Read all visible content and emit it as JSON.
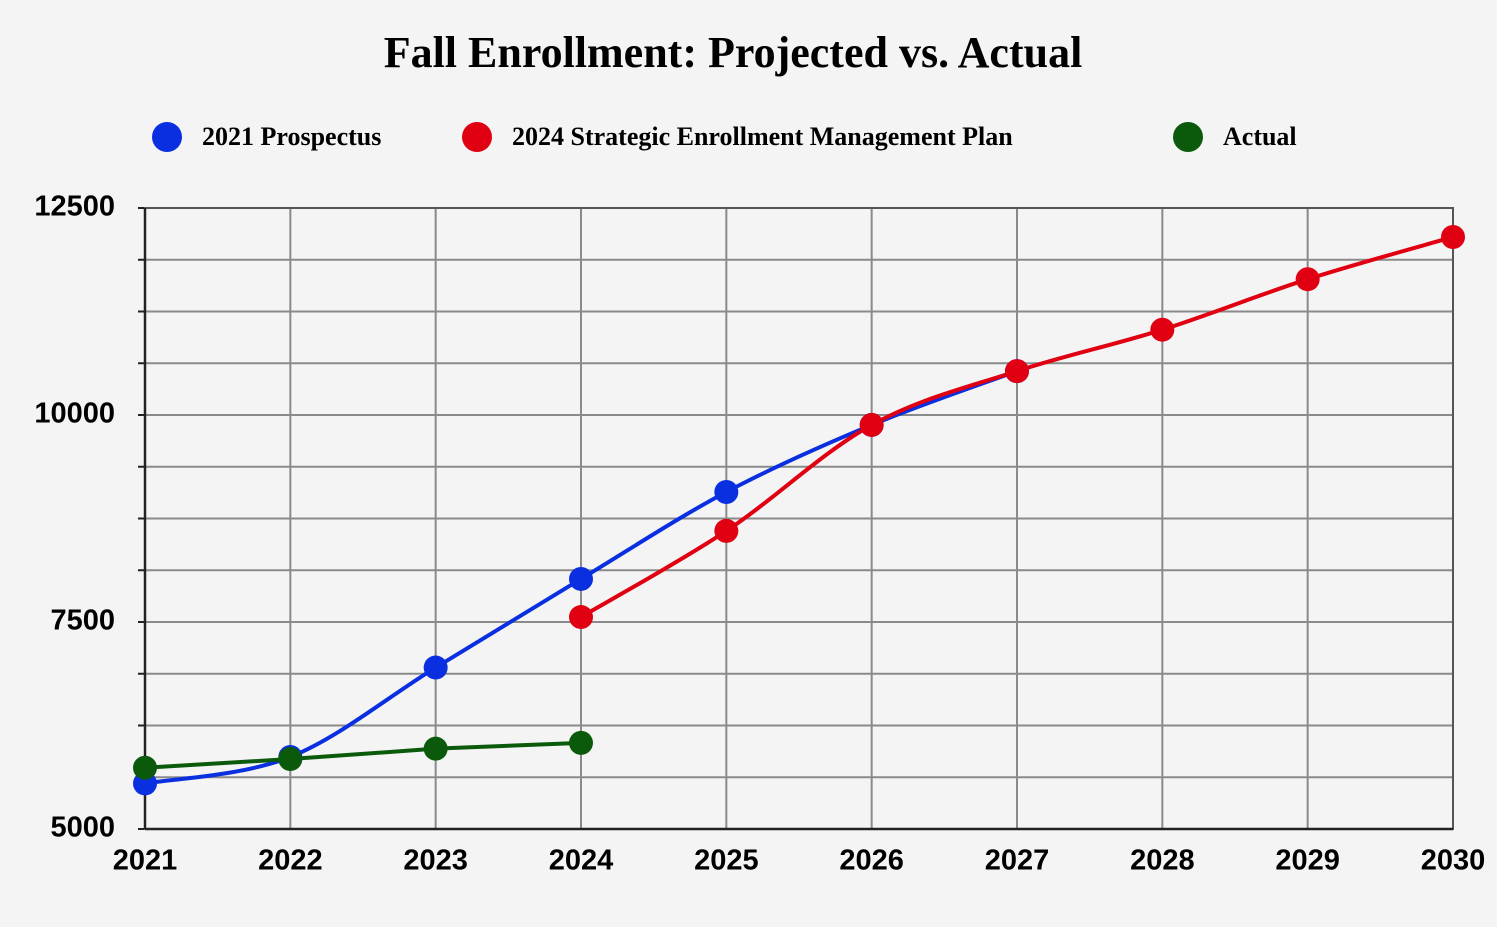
{
  "chart_data": {
    "type": "line",
    "title": "Fall Enrollment: Projected vs. Actual",
    "x": [
      2021,
      2022,
      2023,
      2024,
      2025,
      2026,
      2027,
      2028,
      2029,
      2030
    ],
    "series": [
      {
        "name": "2021 Prospectus",
        "color": "#0a2fe0",
        "smooth": true,
        "values": [
          5550,
          5870,
          6950,
          8020,
          9070,
          9880,
          10530,
          null,
          null,
          null
        ]
      },
      {
        "name": "2024 Strategic Enrollment Management Plan",
        "color": "#e00012",
        "smooth": true,
        "values": [
          null,
          null,
          null,
          7560,
          8600,
          9880,
          10530,
          11030,
          11640,
          12150
        ]
      },
      {
        "name": "Actual",
        "color": "#0b5a0b",
        "smooth": false,
        "values": [
          5740,
          5845,
          5970,
          6040,
          null,
          null,
          null,
          null,
          null,
          null
        ]
      }
    ],
    "xlim": [
      2021,
      2030
    ],
    "xticks": [
      2021,
      2022,
      2023,
      2024,
      2025,
      2026,
      2027,
      2028,
      2029,
      2030
    ],
    "ylim": [
      5000,
      12500
    ],
    "yticks": [
      5000,
      7500,
      10000,
      12500
    ],
    "minor_yticks": [
      5625,
      6250,
      6875,
      8125,
      8750,
      9375,
      10625,
      11250,
      11875
    ],
    "grid": true
  }
}
